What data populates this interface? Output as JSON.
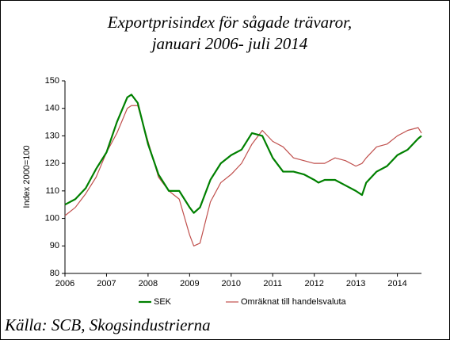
{
  "chart_data": {
    "type": "line",
    "title": [
      "Exportprisindex för sågade trävaror,",
      "januari 2006- juli 2014"
    ],
    "ylabel": "Index 2000=100",
    "source": "Källa: SCB, Skogsindustrierna",
    "x": [
      2006.0,
      2006.25,
      2006.5,
      2006.75,
      2007.0,
      2007.25,
      2007.5,
      2007.6,
      2007.75,
      2008.0,
      2008.25,
      2008.5,
      2008.75,
      2009.0,
      2009.1,
      2009.25,
      2009.5,
      2009.75,
      2010.0,
      2010.25,
      2010.5,
      2010.75,
      2011.0,
      2011.25,
      2011.5,
      2011.75,
      2012.0,
      2012.1,
      2012.25,
      2012.5,
      2012.75,
      2013.0,
      2013.15,
      2013.25,
      2013.5,
      2013.75,
      2014.0,
      2014.25,
      2014.5,
      2014.58
    ],
    "series": [
      {
        "name": "SEK",
        "color": "#008000",
        "values": [
          105,
          107,
          111,
          118,
          124,
          135,
          144,
          145,
          142,
          127,
          116,
          110,
          110,
          104,
          102,
          104,
          114,
          120,
          123,
          125,
          131,
          130,
          122,
          117,
          117,
          116,
          114,
          113,
          114,
          114,
          112,
          110,
          108.5,
          113,
          117,
          119,
          123,
          125,
          129,
          130
        ]
      },
      {
        "name": "Omräknat till handelsvaluta",
        "color": "#c0504d",
        "values": [
          101,
          104,
          109,
          115,
          124,
          131,
          140,
          141,
          141,
          128,
          115,
          110,
          107,
          94,
          90,
          91,
          106,
          113,
          116,
          120,
          127,
          132,
          128,
          126,
          122,
          121,
          120,
          120,
          120,
          122,
          121,
          119,
          120,
          122,
          126,
          127,
          130,
          132,
          133,
          131
        ]
      }
    ],
    "xlim": [
      2006,
      2014.58
    ],
    "xticks": [
      2006,
      2007,
      2008,
      2009,
      2010,
      2011,
      2012,
      2013,
      2014
    ],
    "ylim": [
      80,
      150
    ],
    "yticks": [
      80,
      90,
      100,
      110,
      120,
      130,
      140,
      150
    ]
  }
}
